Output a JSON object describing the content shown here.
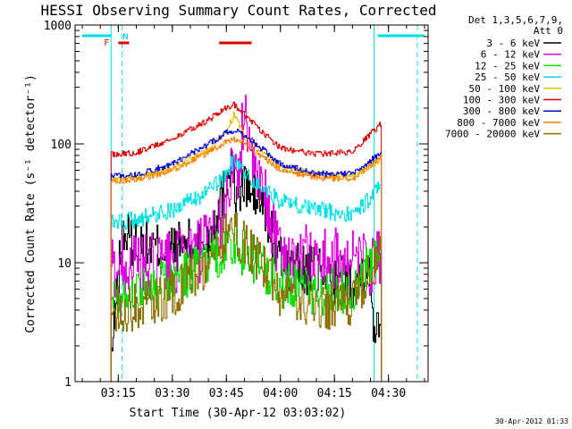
{
  "chart_data": {
    "type": "line",
    "title": "HESSI Observing Summary Count Rates, Corrected",
    "xlabel": "Start Time (30-Apr-12 03:03:02)",
    "ylabel": "Corrected Count Rate (s⁻¹ detector⁻¹)",
    "y_scale": "log",
    "xlim": [
      "03:03",
      "04:41"
    ],
    "ylim": [
      1,
      1000
    ],
    "x_ticks": [
      "03:15",
      "03:30",
      "03:45",
      "04:00",
      "04:15",
      "04:30"
    ],
    "y_ticks": [
      "1",
      "10",
      "100",
      "1000"
    ],
    "legend": {
      "placement": "right",
      "header_lines": [
        "Det 1,3,5,6,7,9,",
        "Att 0"
      ]
    },
    "series": [
      {
        "name": "3 - 6 keV",
        "color": "#000000",
        "x": [
          "03:13",
          "03:16",
          "03:20",
          "03:30",
          "03:40",
          "03:44",
          "03:46",
          "03:48",
          "03:50",
          "03:55",
          "04:00",
          "04:10",
          "04:20",
          "04:24",
          "04:26",
          "04:28"
        ],
        "y": [
          1.6,
          18,
          14,
          13,
          16,
          40,
          70,
          35,
          45,
          30,
          10,
          8,
          7,
          10,
          3,
          4
        ]
      },
      {
        "name": "6 - 12 keV",
        "color": "#e000e0",
        "x": [
          "03:13",
          "03:16",
          "03:20",
          "03:30",
          "03:40",
          "03:44",
          "03:46",
          "03:48",
          "03:50",
          "03:52",
          "03:55",
          "04:00",
          "04:10",
          "04:20",
          "04:26",
          "04:28"
        ],
        "y": [
          9,
          10,
          9,
          10,
          14,
          25,
          60,
          40,
          250,
          60,
          40,
          12,
          11,
          10,
          9,
          11
        ]
      },
      {
        "name": "12 - 25 keV",
        "color": "#00e000",
        "x": [
          "03:13",
          "03:20",
          "03:30",
          "03:40",
          "03:45",
          "03:48",
          "03:52",
          "03:57",
          "04:00",
          "04:10",
          "04:20",
          "04:28"
        ],
        "y": [
          5.5,
          6,
          7,
          10,
          14,
          13,
          11,
          8,
          6.5,
          5.5,
          6,
          14
        ]
      },
      {
        "name": "25 - 50 keV",
        "color": "#00e0e0",
        "x": [
          "03:13",
          "03:20",
          "03:30",
          "03:40",
          "03:45",
          "03:47",
          "03:50",
          "03:55",
          "04:00",
          "04:10",
          "04:20",
          "04:28"
        ],
        "y": [
          22,
          23,
          28,
          40,
          55,
          75,
          55,
          42,
          33,
          28,
          25,
          45
        ]
      },
      {
        "name": "50 - 100 keV",
        "color": "#e0c000",
        "x": [
          "03:13",
          "03:20",
          "03:30",
          "03:40",
          "03:45",
          "03:47",
          "03:50",
          "03:55",
          "04:00",
          "04:10",
          "04:20",
          "04:28"
        ],
        "y": [
          50,
          52,
          62,
          90,
          130,
          175,
          115,
          85,
          65,
          55,
          53,
          75
        ]
      },
      {
        "name": "100 - 300 keV",
        "color": "#e00000",
        "x": [
          "03:13",
          "03:20",
          "03:30",
          "03:40",
          "03:45",
          "03:47",
          "03:50",
          "03:55",
          "04:00",
          "04:10",
          "04:20",
          "04:28"
        ],
        "y": [
          82,
          85,
          110,
          160,
          205,
          215,
          175,
          125,
          92,
          82,
          85,
          150
        ]
      },
      {
        "name": "300 - 800 keV",
        "color": "#0000e0",
        "x": [
          "03:13",
          "03:20",
          "03:30",
          "03:40",
          "03:45",
          "03:47",
          "03:50",
          "03:55",
          "04:00",
          "04:10",
          "04:20",
          "04:28"
        ],
        "y": [
          54,
          55,
          68,
          100,
          125,
          130,
          118,
          90,
          68,
          56,
          56,
          85
        ]
      },
      {
        "name": "800 - 7000 keV",
        "color": "#ff8000",
        "x": [
          "03:13",
          "03:20",
          "03:30",
          "03:40",
          "03:45",
          "03:47",
          "03:50",
          "03:55",
          "04:00",
          "04:10",
          "04:20",
          "04:28"
        ],
        "y": [
          48,
          50,
          60,
          85,
          105,
          110,
          100,
          78,
          60,
          52,
          50,
          78
        ]
      },
      {
        "name": "7000 - 20000 keV",
        "color": "#8b7000",
        "x": [
          "03:13",
          "03:20",
          "03:30",
          "03:40",
          "03:45",
          "03:48",
          "03:52",
          "03:57",
          "04:00",
          "04:10",
          "04:20",
          "04:28"
        ],
        "y": [
          4,
          4.2,
          5.5,
          10,
          18,
          17,
          12,
          8,
          5,
          4.2,
          4.5,
          12
        ]
      }
    ],
    "annotations": {
      "flags": [
        {
          "label": "F",
          "color": "#e00000"
        },
        {
          "label": "N",
          "color": "#00c0e0"
        }
      ],
      "flag_bars": [
        {
          "x_start": "03:05",
          "x_end": "03:13",
          "color": "#00e0e0"
        },
        {
          "x_start": "03:15",
          "x_end": "03:18",
          "color": "#e00000"
        },
        {
          "x_start": "03:43",
          "x_end": "03:52",
          "color": "#e00000"
        },
        {
          "x_start": "04:27",
          "x_end": "04:40",
          "color": "#00e0e0"
        }
      ],
      "night_boundaries": [
        "03:13",
        "03:16",
        "04:26",
        "04:38"
      ]
    },
    "timestamp": "30-Apr-2012 01:33"
  }
}
